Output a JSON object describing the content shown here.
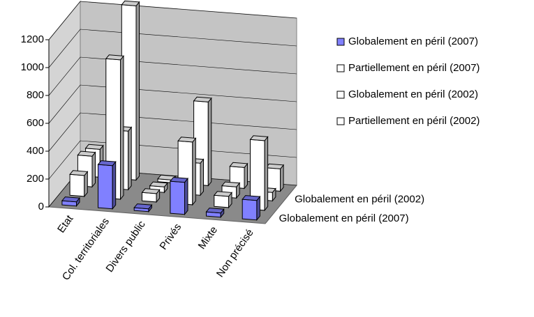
{
  "chart_data": {
    "type": "bar3d",
    "categories": [
      "Etat",
      "Col. territoriales",
      "Divers public",
      "Privés",
      "Mixte",
      "Non précisé"
    ],
    "depth_categories": [
      "Globalement en péril (2007)",
      null,
      "Globalement en péril (2002)",
      null
    ],
    "series": [
      {
        "name": "Globalement en péril (2007)",
        "color": "#8080ff",
        "values": [
          30,
          310,
          20,
          230,
          30,
          140
        ]
      },
      {
        "name": "Partiellement en péril (2007)",
        "color": "#ffffff",
        "values": [
          150,
          1000,
          60,
          450,
          80,
          500
        ]
      },
      {
        "name": "Globalement en péril (2002)",
        "color": "#ffffff",
        "values": [
          220,
          420,
          40,
          230,
          80,
          60
        ]
      },
      {
        "name": "Partiellement en péril (2002)",
        "color": "#ffffff",
        "values": [
          200,
          1250,
          20,
          600,
          150,
          160
        ]
      }
    ],
    "ylim": [
      0,
      1200
    ],
    "yticks": [
      0,
      200,
      400,
      600,
      800,
      1000,
      1200
    ],
    "grid": true
  }
}
